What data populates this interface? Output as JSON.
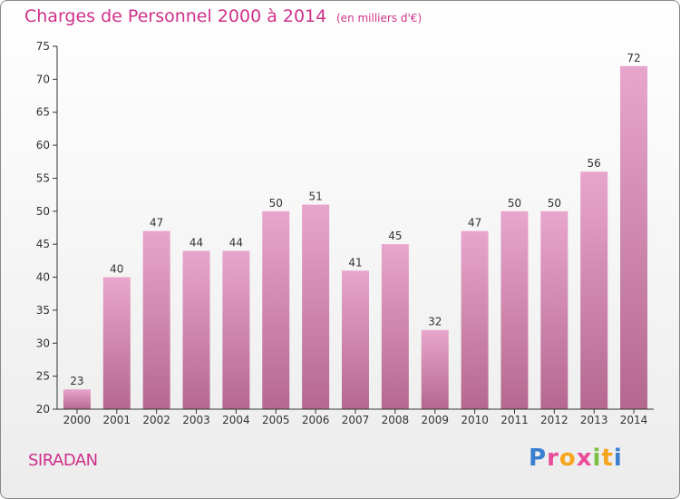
{
  "header": {
    "title": "Charges de Personnel 2000 à 2014",
    "subtitle": "(en milliers d'€)"
  },
  "footer": {
    "commune": "SIRADAN",
    "logo_text": "Proxiti",
    "logo_colors": [
      "#3a7fd0",
      "#e84c9a",
      "#f7a51c",
      "#e84c9a",
      "#7cc043",
      "#f7a51c",
      "#3a7fd0"
    ]
  },
  "colors": {
    "accent": "#d0308a",
    "bar_top": "#e8a6cc",
    "bar_bottom": "#b5688f",
    "axis": "#333333"
  },
  "chart_data": {
    "type": "bar",
    "categories": [
      "2000",
      "2001",
      "2002",
      "2003",
      "2004",
      "2005",
      "2006",
      "2007",
      "2008",
      "2009",
      "2010",
      "2011",
      "2012",
      "2013",
      "2014"
    ],
    "values": [
      23,
      40,
      47,
      44,
      44,
      50,
      51,
      41,
      45,
      32,
      47,
      50,
      50,
      56,
      72
    ],
    "ylim": [
      20,
      75
    ],
    "yticks": [
      20,
      25,
      30,
      35,
      40,
      45,
      50,
      55,
      60,
      65,
      70,
      75
    ],
    "grid": false,
    "xlabel": "",
    "ylabel": ""
  }
}
